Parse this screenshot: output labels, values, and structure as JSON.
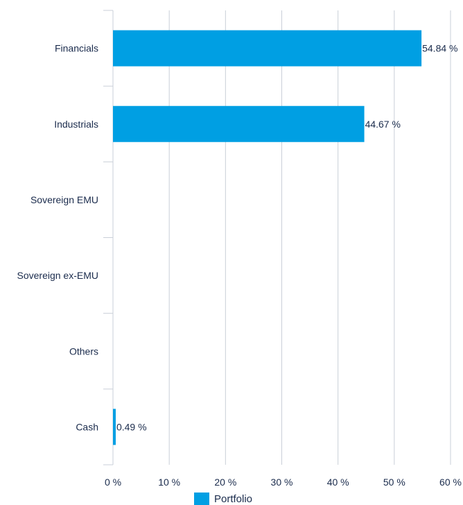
{
  "chart_data": {
    "type": "bar",
    "orientation": "horizontal",
    "categories": [
      "Financials",
      "Industrials",
      "Sovereign EMU",
      "Sovereign ex-EMU",
      "Others",
      "Cash"
    ],
    "series": [
      {
        "name": "Portfolio",
        "values": [
          54.84,
          44.67,
          null,
          null,
          null,
          0.49
        ],
        "labels": [
          "54.84 %",
          "44.67 %",
          "",
          "",
          "",
          "0.49 %"
        ],
        "color": "#009fe3"
      }
    ],
    "xlim": [
      0,
      60
    ],
    "xticks": [
      0,
      10,
      20,
      30,
      40,
      50,
      60
    ],
    "xtick_labels": [
      "0 %",
      "10 %",
      "20 %",
      "30 %",
      "40 %",
      "50 %",
      "60 %"
    ],
    "grid": true,
    "legend": "bottom"
  }
}
